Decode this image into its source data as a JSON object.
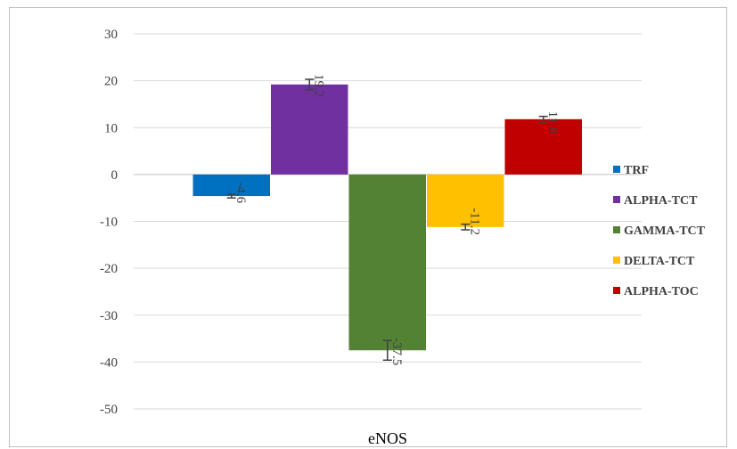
{
  "chart_data": {
    "type": "bar",
    "categories": [
      "eNOS"
    ],
    "series": [
      {
        "name": "TRF",
        "value": -4.6,
        "error": 0.4,
        "label": "-4.6",
        "color": "#0070C0"
      },
      {
        "name": "ALPHA-TCT",
        "value": 19.2,
        "error": 1.1,
        "label": "19.2",
        "color": "#7030A0"
      },
      {
        "name": "GAMMA-TCT",
        "value": -37.5,
        "error": 2.1,
        "label": "-37.5",
        "color": "#548235"
      },
      {
        "name": "DELTA-TCT",
        "value": -11.2,
        "error": 0.6,
        "label": "-11.2",
        "color": "#FFC000"
      },
      {
        "name": "ALPHA-TOC",
        "value": 11.8,
        "error": 0.6,
        "label": "11.8",
        "color": "#C00000"
      }
    ],
    "ylim": [
      -50,
      30
    ],
    "yticks": [
      "30",
      "20",
      "10",
      "0",
      "-10",
      "-20",
      "-30",
      "-40",
      "-50"
    ],
    "grid": true,
    "legend": "right",
    "xlabel": "",
    "ylabel": ""
  }
}
